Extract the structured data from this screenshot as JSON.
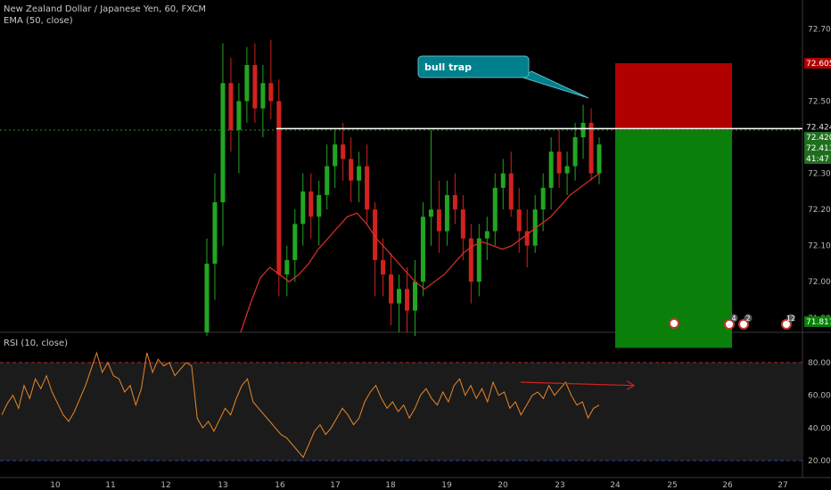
{
  "header": {
    "title": "New Zealand Dollar / Japanese Yen, 60, FXCM",
    "indicator": "EMA (50, close)"
  },
  "rsi_panel": {
    "title": "RSI (10, close)",
    "levels": [
      80,
      60,
      40,
      20
    ],
    "level_labels": [
      "80.00",
      "60.00",
      "40.00",
      "20.00"
    ]
  },
  "annotation": {
    "label": "bull trap"
  },
  "colors": {
    "up": "#21a621",
    "down": "#d0221f",
    "ema": "#e0302b",
    "rsi": "#e8862a",
    "stop_zone": "#b00000",
    "target_zone": "#0a7f0a",
    "callout": "#00808c",
    "level_line": "#ffffff"
  },
  "event_badges": [
    "4",
    "2",
    "12"
  ],
  "chart_data": [
    {
      "type": "candlestick",
      "title": "New Zealand Dollar / Japanese Yen, 60, FXCM",
      "x_label": "",
      "y_label": "",
      "x_ticks": [
        "10",
        "11",
        "12",
        "13",
        "16",
        "17",
        "18",
        "19",
        "20",
        "23",
        "24",
        "25",
        "26",
        "27"
      ],
      "y_ticks": [
        "72.700",
        "72.500",
        "72.300",
        "72.200",
        "72.100",
        "72.000",
        "71.900"
      ],
      "ylim": [
        71.86,
        72.78
      ],
      "price_labels": {
        "stop": "72.605",
        "level": "72.424",
        "prev_close": "72.420",
        "last": "72.413",
        "countdown": "41:47",
        "target": "71.817"
      },
      "resistance_level": 72.424,
      "position": {
        "entry": 72.42,
        "stop": 72.605,
        "target": 71.817
      },
      "candles_ohlc": [
        [
          71.86,
          72.12,
          71.85,
          72.05
        ],
        [
          72.05,
          72.3,
          71.95,
          72.22
        ],
        [
          72.22,
          72.66,
          72.1,
          72.55
        ],
        [
          72.55,
          72.62,
          72.36,
          72.42
        ],
        [
          72.42,
          72.55,
          72.3,
          72.5
        ],
        [
          72.5,
          72.65,
          72.44,
          72.6
        ],
        [
          72.6,
          72.66,
          72.44,
          72.48
        ],
        [
          72.48,
          72.6,
          72.4,
          72.55
        ],
        [
          72.55,
          72.67,
          72.45,
          72.5
        ],
        [
          72.5,
          72.56,
          71.96,
          72.02
        ],
        [
          72.02,
          72.1,
          71.96,
          72.06
        ],
        [
          72.06,
          72.2,
          72.0,
          72.16
        ],
        [
          72.16,
          72.3,
          72.1,
          72.25
        ],
        [
          72.25,
          72.3,
          72.12,
          72.18
        ],
        [
          72.18,
          72.28,
          72.1,
          72.24
        ],
        [
          72.24,
          72.38,
          72.2,
          72.32
        ],
        [
          72.32,
          72.42,
          72.26,
          72.38
        ],
        [
          72.38,
          72.44,
          72.28,
          72.34
        ],
        [
          72.34,
          72.4,
          72.22,
          72.28
        ],
        [
          72.28,
          72.36,
          72.22,
          72.32
        ],
        [
          72.32,
          72.38,
          72.16,
          72.2
        ],
        [
          72.2,
          72.22,
          71.96,
          72.06
        ],
        [
          72.06,
          72.12,
          71.96,
          72.02
        ],
        [
          72.02,
          72.08,
          71.88,
          71.94
        ],
        [
          71.94,
          72.02,
          71.86,
          71.98
        ],
        [
          71.98,
          72.04,
          71.86,
          71.92
        ],
        [
          71.92,
          72.06,
          71.85,
          72.0
        ],
        [
          72.0,
          72.22,
          71.96,
          72.18
        ],
        [
          72.18,
          72.42,
          72.1,
          72.2
        ],
        [
          72.2,
          72.28,
          72.08,
          72.14
        ],
        [
          72.14,
          72.28,
          72.1,
          72.24
        ],
        [
          72.24,
          72.3,
          72.16,
          72.2
        ],
        [
          72.2,
          72.24,
          72.06,
          72.12
        ],
        [
          72.12,
          72.16,
          71.94,
          72.0
        ],
        [
          72.0,
          72.16,
          71.96,
          72.12
        ],
        [
          72.12,
          72.18,
          72.06,
          72.14
        ],
        [
          72.14,
          72.3,
          72.1,
          72.26
        ],
        [
          72.26,
          72.34,
          72.2,
          72.3
        ],
        [
          72.3,
          72.36,
          72.18,
          72.2
        ],
        [
          72.2,
          72.26,
          72.08,
          72.14
        ],
        [
          72.14,
          72.2,
          72.04,
          72.1
        ],
        [
          72.1,
          72.24,
          72.08,
          72.2
        ],
        [
          72.2,
          72.3,
          72.14,
          72.26
        ],
        [
          72.26,
          72.4,
          72.2,
          72.36
        ],
        [
          72.36,
          72.42,
          72.26,
          72.3
        ],
        [
          72.3,
          72.36,
          72.24,
          72.32
        ],
        [
          72.32,
          72.44,
          72.28,
          72.4
        ],
        [
          72.4,
          72.49,
          72.34,
          72.44
        ],
        [
          72.44,
          72.48,
          72.28,
          72.3
        ],
        [
          72.3,
          72.4,
          72.27,
          72.38
        ]
      ],
      "ema_50": [
        71.86,
        71.94,
        72.01,
        72.04,
        72.02,
        72.0,
        72.02,
        72.05,
        72.09,
        72.12,
        72.15,
        72.18,
        72.19,
        72.16,
        72.12,
        72.09,
        72.06,
        72.03,
        72.0,
        71.98,
        72.0,
        72.02,
        72.05,
        72.08,
        72.1,
        72.11,
        72.1,
        72.09,
        72.1,
        72.12,
        72.14,
        72.16,
        72.18,
        72.21,
        72.24,
        72.26,
        72.28,
        72.3
      ]
    },
    {
      "type": "line",
      "title": "RSI (10, close)",
      "x_label": "",
      "y_label": "",
      "ylim": [
        20,
        90
      ],
      "series": [
        {
          "name": "RSI",
          "values": [
            48,
            55,
            60,
            52,
            66,
            58,
            70,
            64,
            72,
            62,
            55,
            48,
            44,
            50,
            58,
            66,
            76,
            86,
            74,
            80,
            72,
            70,
            62,
            66,
            54,
            64,
            86,
            74,
            82,
            78,
            80,
            72,
            76,
            80,
            78,
            46,
            40,
            44,
            38,
            45,
            52,
            48,
            58,
            66,
            70,
            56,
            52,
            48,
            44,
            40,
            36,
            34,
            30,
            26,
            22,
            30,
            38,
            42,
            36,
            40,
            46,
            52,
            48,
            42,
            46,
            56,
            62,
            66,
            58,
            52,
            56,
            50,
            54,
            46,
            52,
            60,
            64,
            58,
            54,
            62,
            56,
            66,
            70,
            60,
            66,
            58,
            64,
            56,
            68,
            60,
            62,
            52,
            56,
            48,
            54,
            60,
            62,
            58,
            66,
            60,
            64,
            68,
            60,
            54,
            56,
            46,
            52,
            54
          ]
        }
      ],
      "divergence_arrow": {
        "from": 68,
        "to": 66
      }
    }
  ]
}
